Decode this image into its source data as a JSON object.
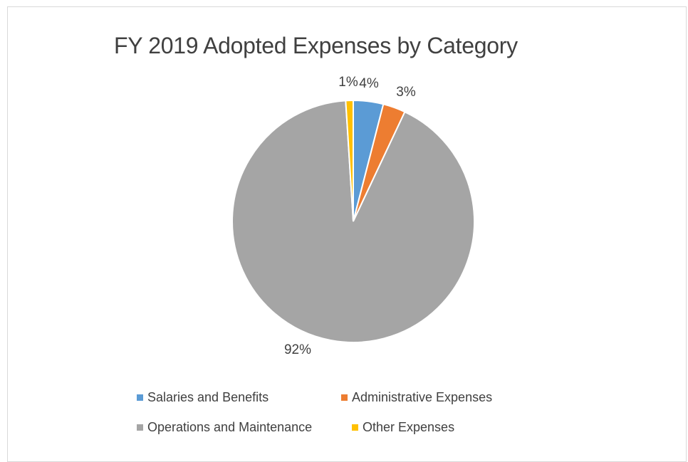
{
  "chart_data": {
    "type": "pie",
    "title": "FY 2019 Adopted Expenses by Category",
    "categories": [
      "Salaries and Benefits",
      "Administrative Expenses",
      "Operations and Maintenance",
      "Other Expenses"
    ],
    "values": [
      4,
      3,
      92,
      1
    ],
    "data_labels": [
      "4%",
      "3%",
      "92%",
      "1%"
    ],
    "colors": [
      "#5B9BD5",
      "#ED7D31",
      "#A5A5A5",
      "#FFC000"
    ],
    "legend_position": "bottom"
  }
}
